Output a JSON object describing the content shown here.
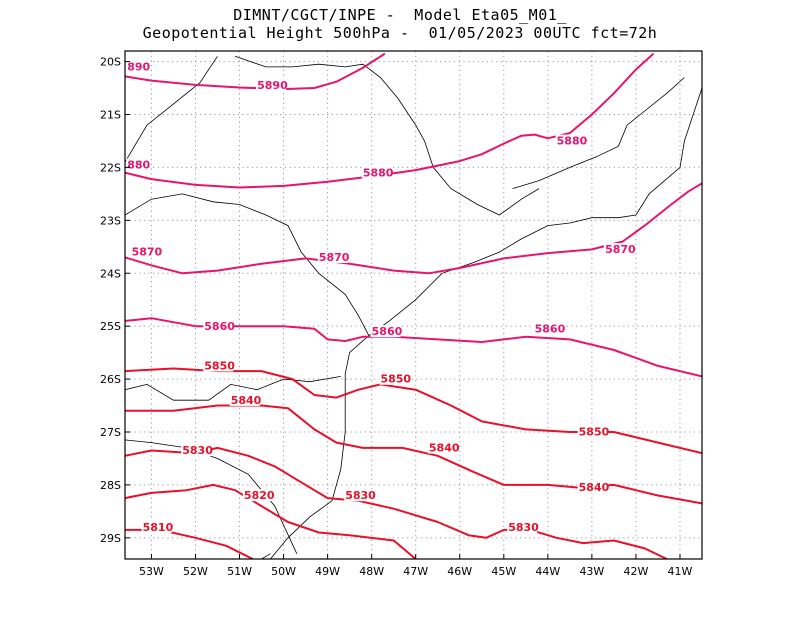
{
  "title_line1": "DIMNT/CGCT/INPE -  Model Eta05_M01_",
  "title_line2": "Geopotential Height 500hPa -  01/05/2023 00UTC fct=72h",
  "colors": {
    "frame": "#000000",
    "grid": "#999999",
    "coast": "#000000",
    "contour_pink": "#e8146e",
    "contour_red": "#e8102a"
  },
  "axes": {
    "lon_ticks": [
      {
        "value": -53,
        "label": "53W"
      },
      {
        "value": -52,
        "label": "52W"
      },
      {
        "value": -51,
        "label": "51W"
      },
      {
        "value": -50,
        "label": "50W"
      },
      {
        "value": -49,
        "label": "49W"
      },
      {
        "value": -48,
        "label": "48W"
      },
      {
        "value": -47,
        "label": "47W"
      },
      {
        "value": -46,
        "label": "46W"
      },
      {
        "value": -45,
        "label": "45W"
      },
      {
        "value": -44,
        "label": "44W"
      },
      {
        "value": -43,
        "label": "43W"
      },
      {
        "value": -42,
        "label": "42W"
      },
      {
        "value": -41,
        "label": "41W"
      }
    ],
    "lat_ticks": [
      {
        "value": -20,
        "label": "20S"
      },
      {
        "value": -21,
        "label": "21S"
      },
      {
        "value": -22,
        "label": "22S"
      },
      {
        "value": -23,
        "label": "23S"
      },
      {
        "value": -24,
        "label": "24S"
      },
      {
        "value": -25,
        "label": "25S"
      },
      {
        "value": -26,
        "label": "26S"
      },
      {
        "value": -27,
        "label": "27S"
      },
      {
        "value": -28,
        "label": "28S"
      },
      {
        "value": -29,
        "label": "29S"
      }
    ],
    "lon_range": [
      -53.6,
      -40.5
    ],
    "lat_range": [
      -29.4,
      -19.8
    ]
  },
  "contours": [
    {
      "level": 5890,
      "color": "pink",
      "labels": [
        {
          "text": "890",
          "lon": -53.55,
          "lat": -20.15
        },
        {
          "text": "5890",
          "lon": -50.6,
          "lat": -20.5
        }
      ],
      "points": [
        [
          -53.6,
          -20.28
        ],
        [
          -53,
          -20.36
        ],
        [
          -52,
          -20.44
        ],
        [
          -51,
          -20.49
        ],
        [
          -50,
          -20.52
        ],
        [
          -49.3,
          -20.5
        ],
        [
          -48.8,
          -20.38
        ],
        [
          -48.2,
          -20.12
        ],
        [
          -47.7,
          -19.85
        ]
      ]
    },
    {
      "level": 5880,
      "color": "pink",
      "labels": [
        {
          "text": "880",
          "lon": -53.55,
          "lat": -22.0
        },
        {
          "text": "5880",
          "lon": -48.2,
          "lat": -22.15
        },
        {
          "text": "5880",
          "lon": -43.8,
          "lat": -21.55
        }
      ],
      "points": [
        [
          -53.6,
          -22.1
        ],
        [
          -53,
          -22.22
        ],
        [
          -52,
          -22.33
        ],
        [
          -51,
          -22.38
        ],
        [
          -50,
          -22.35
        ],
        [
          -49,
          -22.27
        ],
        [
          -48,
          -22.17
        ],
        [
          -47,
          -22.05
        ],
        [
          -46,
          -21.88
        ],
        [
          -45.5,
          -21.75
        ],
        [
          -45,
          -21.55
        ],
        [
          -44.6,
          -21.4
        ],
        [
          -44.3,
          -21.38
        ],
        [
          -44,
          -21.45
        ],
        [
          -43.5,
          -21.35
        ],
        [
          -43,
          -21.0
        ],
        [
          -42.5,
          -20.6
        ],
        [
          -42,
          -20.15
        ],
        [
          -41.6,
          -19.85
        ]
      ]
    },
    {
      "level": 5870,
      "color": "pink",
      "labels": [
        {
          "text": "5870",
          "lon": -53.45,
          "lat": -23.65
        },
        {
          "text": "5870",
          "lon": -49.2,
          "lat": -23.75
        },
        {
          "text": "5870",
          "lon": -42.7,
          "lat": -23.6
        }
      ],
      "points": [
        [
          -53.6,
          -23.7
        ],
        [
          -53,
          -23.85
        ],
        [
          -52.3,
          -24.0
        ],
        [
          -51.5,
          -23.95
        ],
        [
          -50.5,
          -23.82
        ],
        [
          -49.5,
          -23.72
        ],
        [
          -48.5,
          -23.82
        ],
        [
          -47.5,
          -23.95
        ],
        [
          -46.7,
          -24.0
        ],
        [
          -46,
          -23.9
        ],
        [
          -45,
          -23.72
        ],
        [
          -44,
          -23.62
        ],
        [
          -43,
          -23.55
        ],
        [
          -42.3,
          -23.4
        ],
        [
          -41.8,
          -23.1
        ],
        [
          -41.2,
          -22.7
        ],
        [
          -40.8,
          -22.45
        ],
        [
          -40.5,
          -22.3
        ]
      ]
    },
    {
      "level": 5860,
      "color": "pink",
      "labels": [
        {
          "text": "5860",
          "lon": -51.8,
          "lat": -25.05
        },
        {
          "text": "5860",
          "lon": -48.0,
          "lat": -25.15
        },
        {
          "text": "5860",
          "lon": -44.3,
          "lat": -25.1
        }
      ],
      "points": [
        [
          -53.6,
          -24.9
        ],
        [
          -53,
          -24.85
        ],
        [
          -52,
          -25.0
        ],
        [
          -51,
          -25.0
        ],
        [
          -50,
          -25.0
        ],
        [
          -49.3,
          -25.05
        ],
        [
          -49,
          -25.25
        ],
        [
          -48.6,
          -25.28
        ],
        [
          -48.2,
          -25.2
        ],
        [
          -47.5,
          -25.2
        ],
        [
          -46.5,
          -25.25
        ],
        [
          -45.5,
          -25.3
        ],
        [
          -44.5,
          -25.2
        ],
        [
          -43.5,
          -25.25
        ],
        [
          -42.5,
          -25.45
        ],
        [
          -41.5,
          -25.75
        ],
        [
          -40.5,
          -25.95
        ]
      ]
    },
    {
      "level": 5850,
      "color": "red",
      "labels": [
        {
          "text": "5850",
          "lon": -51.8,
          "lat": -25.8
        },
        {
          "text": "5850",
          "lon": -47.8,
          "lat": -26.05
        },
        {
          "text": "5850",
          "lon": -43.3,
          "lat": -27.05
        }
      ],
      "points": [
        [
          -53.6,
          -25.85
        ],
        [
          -52.5,
          -25.8
        ],
        [
          -51.5,
          -25.85
        ],
        [
          -50.5,
          -25.85
        ],
        [
          -49.8,
          -26.0
        ],
        [
          -49.3,
          -26.3
        ],
        [
          -48.8,
          -26.35
        ],
        [
          -48.3,
          -26.2
        ],
        [
          -47.8,
          -26.1
        ],
        [
          -47,
          -26.2
        ],
        [
          -46.2,
          -26.5
        ],
        [
          -45.5,
          -26.8
        ],
        [
          -44.5,
          -26.95
        ],
        [
          -43.5,
          -27.0
        ],
        [
          -42.5,
          -27.0
        ],
        [
          -41.5,
          -27.2
        ],
        [
          -40.5,
          -27.4
        ]
      ]
    },
    {
      "level": 5840,
      "color": "red",
      "labels": [
        {
          "text": "5840",
          "lon": -51.2,
          "lat": -26.45
        },
        {
          "text": "5840",
          "lon": -46.7,
          "lat": -27.35
        },
        {
          "text": "5840",
          "lon": -43.3,
          "lat": -28.1
        }
      ],
      "points": [
        [
          -53.6,
          -26.6
        ],
        [
          -52.5,
          -26.6
        ],
        [
          -51.5,
          -26.5
        ],
        [
          -50.5,
          -26.5
        ],
        [
          -49.9,
          -26.55
        ],
        [
          -49.3,
          -26.95
        ],
        [
          -48.8,
          -27.2
        ],
        [
          -48.2,
          -27.3
        ],
        [
          -47.3,
          -27.3
        ],
        [
          -46.5,
          -27.45
        ],
        [
          -45.7,
          -27.75
        ],
        [
          -45,
          -28.0
        ],
        [
          -44,
          -28.0
        ],
        [
          -43.3,
          -28.05
        ],
        [
          -42.5,
          -28.0
        ],
        [
          -41.5,
          -28.2
        ],
        [
          -40.5,
          -28.35
        ]
      ]
    },
    {
      "level": 5830,
      "color": "red",
      "labels": [
        {
          "text": "5830",
          "lon": -52.3,
          "lat": -27.4
        },
        {
          "text": "5830",
          "lon": -48.6,
          "lat": -28.25
        },
        {
          "text": "5830",
          "lon": -44.9,
          "lat": -28.85
        }
      ],
      "points": [
        [
          -53.6,
          -27.45
        ],
        [
          -53,
          -27.35
        ],
        [
          -52,
          -27.4
        ],
        [
          -51.5,
          -27.3
        ],
        [
          -50.8,
          -27.45
        ],
        [
          -50.2,
          -27.65
        ],
        [
          -49.6,
          -27.95
        ],
        [
          -49,
          -28.25
        ],
        [
          -48.3,
          -28.3
        ],
        [
          -47.5,
          -28.45
        ],
        [
          -46.5,
          -28.7
        ],
        [
          -45.8,
          -28.95
        ],
        [
          -45.4,
          -29.0
        ],
        [
          -45,
          -28.85
        ],
        [
          -44.4,
          -28.85
        ],
        [
          -43.8,
          -29.0
        ],
        [
          -43.2,
          -29.1
        ],
        [
          -42.5,
          -29.05
        ],
        [
          -41.8,
          -29.2
        ],
        [
          -41.3,
          -29.4
        ]
      ]
    },
    {
      "level": 5820,
      "color": "red",
      "labels": [
        {
          "text": "5820",
          "lon": -50.9,
          "lat": -28.25
        }
      ],
      "points": [
        [
          -53.6,
          -28.25
        ],
        [
          -53,
          -28.15
        ],
        [
          -52.2,
          -28.1
        ],
        [
          -51.6,
          -28.0
        ],
        [
          -51.1,
          -28.1
        ],
        [
          -50.5,
          -28.4
        ],
        [
          -49.9,
          -28.7
        ],
        [
          -49.2,
          -28.9
        ],
        [
          -48.5,
          -28.95
        ],
        [
          -47.5,
          -29.05
        ],
        [
          -47,
          -29.4
        ]
      ]
    },
    {
      "level": 5810,
      "color": "red",
      "labels": [
        {
          "text": "5810",
          "lon": -53.2,
          "lat": -28.85
        }
      ],
      "points": [
        [
          -53.6,
          -28.85
        ],
        [
          -52.8,
          -28.85
        ],
        [
          -52,
          -29.0
        ],
        [
          -51.3,
          -29.15
        ],
        [
          -50.7,
          -29.4
        ]
      ]
    }
  ],
  "coastlines": [
    {
      "name": "atlantic-coast",
      "points": [
        [
          -54,
          -30.9
        ],
        [
          -53.2,
          -30.2
        ],
        [
          -52,
          -29.8
        ],
        [
          -50.8,
          -29.6
        ],
        [
          -50.3,
          -29.4
        ],
        [
          -49.9,
          -29.0
        ],
        [
          -49.4,
          -28.6
        ],
        [
          -48.9,
          -28.3
        ],
        [
          -48.7,
          -27.7
        ],
        [
          -48.6,
          -27.0
        ],
        [
          -48.6,
          -26.3
        ],
        [
          -48.6,
          -25.9
        ],
        [
          -48.5,
          -25.5
        ],
        [
          -48.1,
          -25.2
        ],
        [
          -47.6,
          -24.9
        ],
        [
          -47.0,
          -24.5
        ],
        [
          -46.4,
          -24.0
        ],
        [
          -45.7,
          -23.8
        ],
        [
          -45.1,
          -23.6
        ],
        [
          -44.6,
          -23.35
        ],
        [
          -44.0,
          -23.1
        ],
        [
          -43.5,
          -23.05
        ],
        [
          -43.0,
          -22.95
        ],
        [
          -42.4,
          -22.95
        ],
        [
          -42.0,
          -22.9
        ],
        [
          -41.7,
          -22.5
        ],
        [
          -41.0,
          -22.0
        ],
        [
          -40.9,
          -21.5
        ],
        [
          -40.7,
          -21.0
        ],
        [
          -40.5,
          -20.5
        ]
      ]
    },
    {
      "name": "state-border-sp-mg",
      "points": [
        [
          -51.1,
          -19.9
        ],
        [
          -50.4,
          -20.1
        ],
        [
          -49.8,
          -20.1
        ],
        [
          -49.2,
          -20.05
        ],
        [
          -48.6,
          -20.1
        ],
        [
          -48.2,
          -20.05
        ],
        [
          -47.8,
          -20.3
        ],
        [
          -47.4,
          -20.7
        ],
        [
          -47.0,
          -21.2
        ],
        [
          -46.8,
          -21.5
        ],
        [
          -46.6,
          -22.0
        ],
        [
          -46.2,
          -22.4
        ],
        [
          -45.6,
          -22.7
        ],
        [
          -45.1,
          -22.9
        ],
        [
          -44.6,
          -22.6
        ],
        [
          -44.2,
          -22.4
        ]
      ]
    },
    {
      "name": "state-border-mg-rj",
      "points": [
        [
          -44.8,
          -22.4
        ],
        [
          -44.2,
          -22.25
        ],
        [
          -43.5,
          -22.0
        ],
        [
          -42.9,
          -21.8
        ],
        [
          -42.4,
          -21.6
        ],
        [
          -42.2,
          -21.2
        ],
        [
          -41.9,
          -21.0
        ],
        [
          -41.3,
          -20.6
        ],
        [
          -40.9,
          -20.3
        ]
      ]
    },
    {
      "name": "state-border-pr-sc",
      "points": [
        [
          -53.6,
          -26.2
        ],
        [
          -53.1,
          -26.1
        ],
        [
          -52.5,
          -26.4
        ],
        [
          -51.7,
          -26.4
        ],
        [
          -51.2,
          -26.1
        ],
        [
          -50.6,
          -26.2
        ],
        [
          -50.0,
          -26.0
        ],
        [
          -49.4,
          -26.05
        ],
        [
          -48.7,
          -25.95
        ]
      ]
    },
    {
      "name": "state-border-sp-pr",
      "points": [
        [
          -53.6,
          -22.9
        ],
        [
          -53.0,
          -22.6
        ],
        [
          -52.3,
          -22.5
        ],
        [
          -51.6,
          -22.65
        ],
        [
          -51.0,
          -22.7
        ],
        [
          -50.4,
          -22.9
        ],
        [
          -49.9,
          -23.1
        ],
        [
          -49.6,
          -23.6
        ],
        [
          -49.2,
          -24.0
        ],
        [
          -48.6,
          -24.4
        ],
        [
          -48.3,
          -24.8
        ],
        [
          -48.05,
          -25.2
        ]
      ]
    },
    {
      "name": "state-border-sc-rs",
      "points": [
        [
          -53.6,
          -27.15
        ],
        [
          -53.0,
          -27.2
        ],
        [
          -52.2,
          -27.3
        ],
        [
          -51.5,
          -27.5
        ],
        [
          -50.8,
          -27.8
        ],
        [
          -50.2,
          -28.4
        ],
        [
          -49.7,
          -29.3
        ]
      ]
    },
    {
      "name": "river-parana",
      "points": [
        [
          -53.6,
          -21.9
        ],
        [
          -53.1,
          -21.2
        ],
        [
          -52.5,
          -20.8
        ],
        [
          -51.9,
          -20.4
        ],
        [
          -51.5,
          -19.9
        ]
      ]
    },
    {
      "name": "lagoa-patos",
      "points": [
        [
          -51.2,
          -30.0
        ],
        [
          -50.9,
          -29.7
        ],
        [
          -50.7,
          -29.5
        ],
        [
          -50.3,
          -29.3
        ]
      ]
    }
  ]
}
